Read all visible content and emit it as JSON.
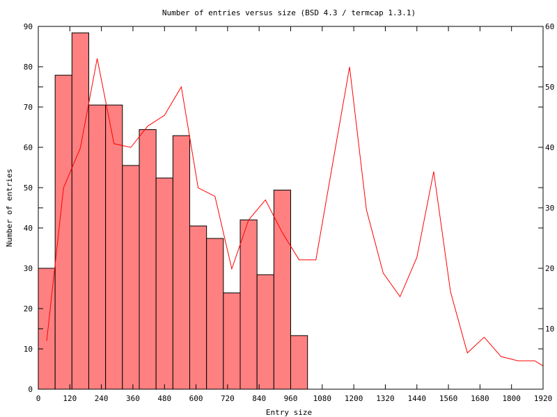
{
  "chart_data": {
    "type": "bar",
    "title": "Number of entries versus size (BSD 4.3 / termcap 1.3.1)",
    "xlabel": "Entry size",
    "ylabel": "Number of entries",
    "xlim": [
      0,
      1920
    ],
    "x_ticks": [
      "0",
      "120",
      "240",
      "360",
      "480",
      "600",
      "720",
      "840",
      "960",
      "1080",
      "1200",
      "1320",
      "1440",
      "1560",
      "1680",
      "1800",
      "1920"
    ],
    "ylim": [
      0,
      90
    ],
    "y_ticks": [
      "0",
      "10",
      "20",
      "30",
      "40",
      "50",
      "60",
      "70",
      "80",
      "90"
    ],
    "y2lim": [
      0,
      60
    ],
    "y2_ticks": [
      "10",
      "20",
      "30",
      "40",
      "50",
      "60"
    ],
    "grid": false,
    "bar_color": "#ff8080",
    "line_color": "#ff0000",
    "series": [
      {
        "name": "histogram",
        "type": "bar",
        "axis": "y",
        "bin_width": 64,
        "bin_starts": [
          0,
          64,
          128,
          192,
          256,
          320,
          384,
          448,
          512,
          576,
          640,
          704,
          768,
          832,
          896,
          960
        ],
        "values": [
          30.0,
          77.9,
          88.4,
          70.5,
          70.5,
          55.5,
          64.4,
          52.4,
          62.9,
          40.5,
          37.4,
          23.9,
          42.0,
          28.4,
          49.4,
          13.3
        ]
      },
      {
        "name": "curve",
        "type": "line",
        "axis": "y2",
        "x": [
          32,
          96,
          160,
          224,
          288,
          352,
          416,
          480,
          544,
          608,
          672,
          736,
          800,
          864,
          928,
          992,
          1056,
          1120,
          1184,
          1248,
          1312,
          1376,
          1440,
          1504,
          1568,
          1632,
          1696,
          1760,
          1824,
          1888,
          1952
        ],
        "values": [
          8.0,
          33.3,
          39.9,
          54.7,
          40.6,
          40.0,
          43.5,
          45.3,
          50.0,
          33.3,
          31.9,
          19.9,
          28.0,
          31.3,
          25.9,
          21.4,
          21.4,
          37.4,
          53.3,
          29.7,
          19.2,
          15.3,
          21.8,
          36.0,
          16.1,
          6.0,
          8.6,
          5.4,
          4.7,
          4.7,
          3.0
        ]
      }
    ]
  }
}
